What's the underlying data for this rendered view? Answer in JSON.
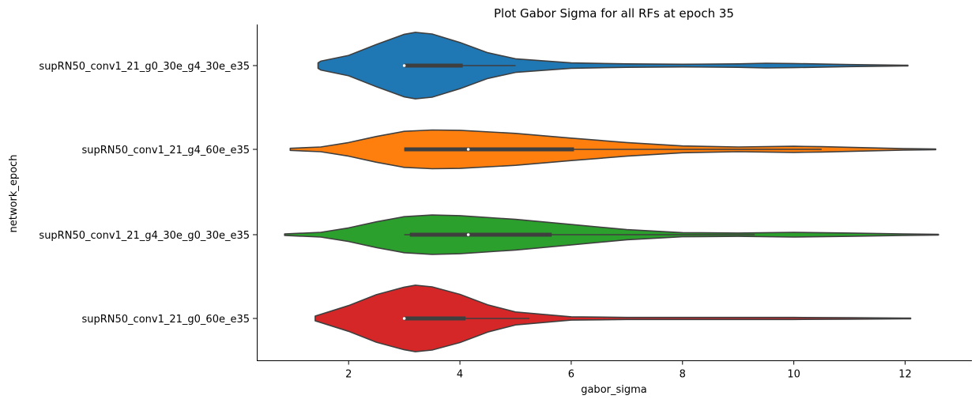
{
  "chart_data": {
    "type": "violin",
    "orientation": "horizontal",
    "title": "Plot Gabor Sigma for all RFs at epoch 35",
    "xlabel": "gabor_sigma",
    "ylabel": "network_epoch",
    "xlim": [
      0.35,
      13.2
    ],
    "xticks": [
      2,
      4,
      6,
      8,
      10,
      12
    ],
    "grid": false,
    "series": [
      {
        "name": "supRN50_conv1_21_g0_30e_g4_30e_e35",
        "color": "#1f77b4",
        "min": 1.45,
        "max": 12.05,
        "q1": 3.0,
        "median": 3.0,
        "q3": 4.05,
        "whisker_low": 3.0,
        "whisker_high": 5.0,
        "density": [
          [
            1.45,
            0.08
          ],
          [
            1.5,
            0.13
          ],
          [
            2.0,
            0.3
          ],
          [
            2.5,
            0.62
          ],
          [
            3.0,
            0.92
          ],
          [
            3.2,
            0.98
          ],
          [
            3.5,
            0.93
          ],
          [
            4.0,
            0.68
          ],
          [
            4.5,
            0.38
          ],
          [
            5.0,
            0.2
          ],
          [
            6.0,
            0.08
          ],
          [
            7.0,
            0.05
          ],
          [
            8.0,
            0.04
          ],
          [
            9.0,
            0.05
          ],
          [
            9.5,
            0.07
          ],
          [
            10.0,
            0.06
          ],
          [
            11.0,
            0.03
          ],
          [
            12.05,
            0.01
          ]
        ]
      },
      {
        "name": "supRN50_conv1_21_g4_60e_e35",
        "color": "#ff7f0e",
        "min": 0.95,
        "max": 12.55,
        "q1": 3.0,
        "median": 4.15,
        "q3": 6.05,
        "whisker_low": 3.0,
        "whisker_high": 10.5,
        "density": [
          [
            0.95,
            0.03
          ],
          [
            1.5,
            0.07
          ],
          [
            2.0,
            0.2
          ],
          [
            2.5,
            0.38
          ],
          [
            3.0,
            0.53
          ],
          [
            3.5,
            0.57
          ],
          [
            4.0,
            0.56
          ],
          [
            5.0,
            0.47
          ],
          [
            6.0,
            0.33
          ],
          [
            7.0,
            0.2
          ],
          [
            8.0,
            0.1
          ],
          [
            9.0,
            0.07
          ],
          [
            10.0,
            0.09
          ],
          [
            10.5,
            0.08
          ],
          [
            11.0,
            0.06
          ],
          [
            12.0,
            0.02
          ],
          [
            12.55,
            0.01
          ]
        ]
      },
      {
        "name": "supRN50_conv1_21_g4_30e_g0_30e_e35",
        "color": "#2ca02c",
        "min": 0.85,
        "max": 12.6,
        "q1": 3.1,
        "median": 4.15,
        "q3": 5.65,
        "whisker_low": 3.0,
        "whisker_high": 9.3,
        "density": [
          [
            0.85,
            0.02
          ],
          [
            1.5,
            0.07
          ],
          [
            2.0,
            0.2
          ],
          [
            2.5,
            0.38
          ],
          [
            3.0,
            0.53
          ],
          [
            3.5,
            0.58
          ],
          [
            4.0,
            0.56
          ],
          [
            5.0,
            0.45
          ],
          [
            6.0,
            0.3
          ],
          [
            7.0,
            0.15
          ],
          [
            8.0,
            0.06
          ],
          [
            9.0,
            0.05
          ],
          [
            10.0,
            0.07
          ],
          [
            11.0,
            0.05
          ],
          [
            12.0,
            0.02
          ],
          [
            12.6,
            0.01
          ]
        ]
      },
      {
        "name": "supRN50_conv1_21_g0_60e_e35",
        "color": "#d62728",
        "min": 1.4,
        "max": 12.1,
        "q1": 3.0,
        "median": 3.0,
        "q3": 4.1,
        "whisker_low": 3.0,
        "whisker_high": 5.25,
        "density": [
          [
            1.4,
            0.07
          ],
          [
            1.5,
            0.12
          ],
          [
            2.0,
            0.38
          ],
          [
            2.5,
            0.7
          ],
          [
            3.0,
            0.92
          ],
          [
            3.2,
            0.98
          ],
          [
            3.5,
            0.93
          ],
          [
            4.0,
            0.71
          ],
          [
            4.5,
            0.4
          ],
          [
            5.0,
            0.19
          ],
          [
            6.0,
            0.05
          ],
          [
            7.0,
            0.03
          ],
          [
            8.0,
            0.03
          ],
          [
            9.0,
            0.03
          ],
          [
            10.0,
            0.03
          ],
          [
            11.0,
            0.02
          ],
          [
            12.1,
            0.01
          ]
        ]
      }
    ]
  }
}
